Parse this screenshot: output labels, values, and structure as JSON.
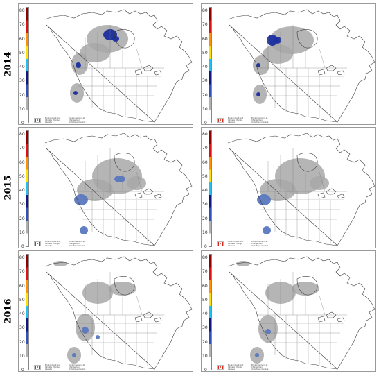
{
  "rows": [
    {
      "label": "2014"
    },
    {
      "label": "2015"
    },
    {
      "label": "2016"
    }
  ],
  "scale": {
    "ticks": [
      "80",
      "70",
      "60",
      "50",
      "40",
      "30",
      "20",
      "10",
      "0"
    ],
    "colors": [
      "#ffffff",
      "#b0b0b0",
      "#3050c0",
      "#101880",
      "#20c0f0",
      "#ffe000",
      "#ff9000",
      "#e01010",
      "#900000"
    ]
  },
  "footer": {
    "credit_left": "Environment and Climate Change Canada",
    "credit_right": "Environnement et Changement climatique Canada"
  },
  "colors": {
    "land_outline": "#3a3a3a",
    "smoke_light": "#a8a8a8",
    "smoke_blue": "#5a78c0",
    "smoke_dark": "#1a2fa0"
  }
}
